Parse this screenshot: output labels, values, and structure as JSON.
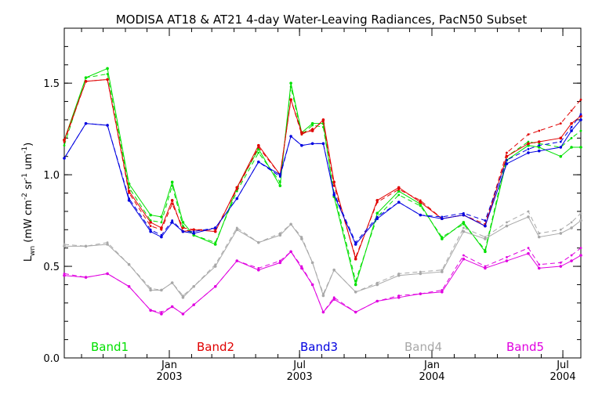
{
  "chart_data": {
    "type": "line",
    "title": "MODISA AT18 & AT21 4-day Water-Leaving Radiances, PacN50 Subset",
    "ylabel": "L_wn (mW cm^-2 sr^-1 um^-1)",
    "ylabel_parts": {
      "base": "L",
      "sub": "wn",
      "p1": " (mW cm",
      "sup1": "-2",
      "p2": " sr",
      "sup2": "-1",
      "p3": " um",
      "sup3": "-1",
      "p4": ")"
    },
    "xlabel": "",
    "ylim": [
      0.0,
      1.8
    ],
    "xlim": [
      "2002-08-08",
      "2004-07-26"
    ],
    "yticks": [
      {
        "value": 0.0,
        "label": "0.0"
      },
      {
        "value": 0.5,
        "label": "0.5"
      },
      {
        "value": 1.0,
        "label": "1.0"
      },
      {
        "value": 1.5,
        "label": "1.5"
      }
    ],
    "xticks": [
      {
        "date": "2003-01-01",
        "line1": "Jan",
        "line2": "2003"
      },
      {
        "date": "2003-07-01",
        "line1": "Jul",
        "line2": "2003"
      },
      {
        "date": "2004-01-01",
        "line1": "Jan",
        "line2": "2004"
      },
      {
        "date": "2004-07-01",
        "line1": "Jul",
        "line2": "2004"
      }
    ],
    "grid": false,
    "legend_position": "bottom",
    "x": [
      "2002-08-08",
      "2002-09-07",
      "2002-10-07",
      "2002-11-06",
      "2002-12-06",
      "2002-12-21",
      "2003-01-05",
      "2003-01-20",
      "2003-02-04",
      "2003-03-06",
      "2003-04-05",
      "2003-05-05",
      "2003-06-04",
      "2003-06-19",
      "2003-07-04",
      "2003-07-19",
      "2003-08-03",
      "2003-08-18",
      "2003-09-17",
      "2003-10-17",
      "2003-11-16",
      "2003-12-16",
      "2004-01-15",
      "2004-02-14",
      "2004-03-15",
      "2004-04-14",
      "2004-05-14",
      "2004-05-29",
      "2004-06-28",
      "2004-07-13",
      "2004-07-26"
    ],
    "series": [
      {
        "name": "Band1",
        "color": "#00e000",
        "values": [
          1.19,
          1.53,
          1.58,
          0.95,
          0.78,
          0.77,
          0.96,
          0.74,
          0.67,
          0.62,
          0.93,
          1.14,
          0.94,
          1.5,
          1.23,
          1.28,
          1.28,
          0.88,
          0.4,
          0.79,
          0.91,
          0.84,
          0.65,
          0.74,
          0.58,
          1.08,
          1.16,
          1.15,
          1.1,
          1.15,
          1.15
        ],
        "values_dashed": [
          1.16,
          1.53,
          1.55,
          0.93,
          0.75,
          0.74,
          0.94,
          0.72,
          0.67,
          0.63,
          0.91,
          1.12,
          0.96,
          1.48,
          1.22,
          1.27,
          1.26,
          0.9,
          0.42,
          0.77,
          0.89,
          0.83,
          0.66,
          0.73,
          0.59,
          1.1,
          1.18,
          1.17,
          1.15,
          1.2,
          1.24
        ]
      },
      {
        "name": "Band2",
        "color": "#e00000",
        "values": [
          1.19,
          1.51,
          1.52,
          0.91,
          0.74,
          0.71,
          0.86,
          0.69,
          0.7,
          0.69,
          0.93,
          1.16,
          1.0,
          1.41,
          1.23,
          1.24,
          1.3,
          0.96,
          0.54,
          0.86,
          0.93,
          0.85,
          0.76,
          0.78,
          0.72,
          1.1,
          1.17,
          1.18,
          1.2,
          1.28,
          1.32
        ],
        "values_dashed": [
          1.18,
          1.51,
          1.52,
          0.9,
          0.72,
          0.7,
          0.84,
          0.71,
          0.7,
          0.7,
          0.92,
          1.15,
          1.0,
          1.41,
          1.22,
          1.25,
          1.29,
          0.94,
          0.55,
          0.85,
          0.92,
          0.86,
          0.76,
          0.78,
          0.73,
          1.12,
          1.22,
          1.24,
          1.28,
          1.35,
          1.41
        ]
      },
      {
        "name": "Band3",
        "color": "#0000e0",
        "values": [
          1.09,
          1.28,
          1.27,
          0.86,
          0.69,
          0.66,
          0.74,
          0.69,
          0.68,
          0.71,
          0.87,
          1.07,
          1.0,
          1.21,
          1.16,
          1.17,
          1.17,
          0.89,
          0.62,
          0.76,
          0.85,
          0.78,
          0.76,
          0.78,
          0.72,
          1.06,
          1.12,
          1.13,
          1.15,
          1.24,
          1.3
        ],
        "values_dashed": [
          1.09,
          1.28,
          1.27,
          0.87,
          0.7,
          0.67,
          0.75,
          0.69,
          0.69,
          0.71,
          0.87,
          1.07,
          0.99,
          1.21,
          1.16,
          1.17,
          1.17,
          0.9,
          0.63,
          0.77,
          0.85,
          0.78,
          0.77,
          0.79,
          0.75,
          1.08,
          1.14,
          1.16,
          1.18,
          1.26,
          1.33
        ]
      },
      {
        "name": "Band4",
        "color": "#a8a8a8",
        "values": [
          0.61,
          0.61,
          0.62,
          0.51,
          0.37,
          0.37,
          0.41,
          0.33,
          0.39,
          0.5,
          0.7,
          0.63,
          0.67,
          0.73,
          0.65,
          0.52,
          0.34,
          0.48,
          0.36,
          0.4,
          0.45,
          0.46,
          0.47,
          0.69,
          0.65,
          0.72,
          0.77,
          0.66,
          0.68,
          0.71,
          0.75
        ],
        "values_dashed": [
          0.62,
          0.61,
          0.63,
          0.51,
          0.38,
          0.37,
          0.41,
          0.34,
          0.39,
          0.51,
          0.71,
          0.63,
          0.68,
          0.73,
          0.66,
          0.52,
          0.35,
          0.48,
          0.36,
          0.41,
          0.46,
          0.47,
          0.48,
          0.71,
          0.66,
          0.74,
          0.8,
          0.68,
          0.7,
          0.74,
          0.79
        ]
      },
      {
        "name": "Band5",
        "color": "#e000e0",
        "values": [
          0.45,
          0.44,
          0.46,
          0.39,
          0.26,
          0.24,
          0.28,
          0.24,
          0.29,
          0.39,
          0.53,
          0.48,
          0.52,
          0.58,
          0.49,
          0.4,
          0.25,
          0.32,
          0.25,
          0.31,
          0.33,
          0.35,
          0.36,
          0.54,
          0.49,
          0.53,
          0.57,
          0.49,
          0.5,
          0.53,
          0.56
        ],
        "values_dashed": [
          0.46,
          0.44,
          0.46,
          0.39,
          0.26,
          0.25,
          0.28,
          0.24,
          0.29,
          0.39,
          0.53,
          0.49,
          0.53,
          0.58,
          0.5,
          0.4,
          0.25,
          0.33,
          0.25,
          0.31,
          0.34,
          0.35,
          0.37,
          0.56,
          0.5,
          0.55,
          0.6,
          0.51,
          0.52,
          0.56,
          0.6
        ]
      }
    ]
  }
}
